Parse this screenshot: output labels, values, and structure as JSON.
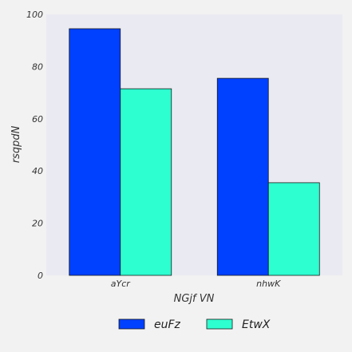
{
  "chart_data": {
    "type": "bar",
    "categories": [
      "aYcr",
      "nhwK"
    ],
    "series": [
      {
        "name": "euFz",
        "values": [
          94.5,
          75.5
        ],
        "color": "#0040ff"
      },
      {
        "name": "EtwX",
        "values": [
          71.5,
          35.5
        ],
        "color": "#2effd0"
      }
    ],
    "xlabel": "NGjf VN",
    "ylabel": "rsqpdN",
    "ylim": [
      0,
      100
    ],
    "yticks": [
      0,
      20,
      40,
      60,
      80,
      100
    ],
    "grid": false,
    "legend_position": "bottom",
    "plot_background": "#eaeaf2",
    "page_background": "#f2f2f2"
  }
}
